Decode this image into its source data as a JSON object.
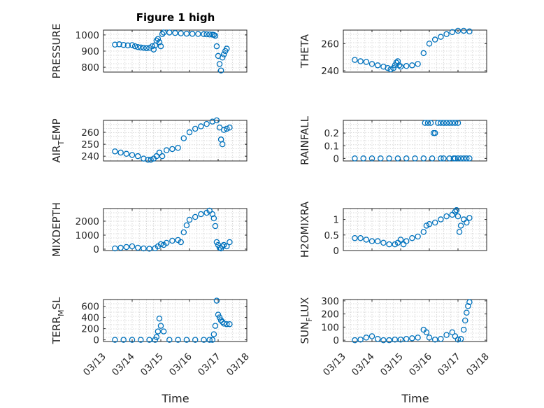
{
  "figure_title": "Figure 1 high",
  "x_axis_label": "Time",
  "x_tick_labels": [
    "03/13",
    "03/14",
    "03/15",
    "03/16",
    "03/17",
    "03/18"
  ],
  "marker_color": "#0072BD",
  "chart_data": [
    {
      "type": "scatter",
      "name": "pressure",
      "ylabel": "PRESSURE",
      "xlim": [
        0,
        5
      ],
      "ylim": [
        770,
        1030
      ],
      "yticks": [
        800,
        900,
        1000
      ],
      "grid": true,
      "x": [
        0.4,
        0.55,
        0.7,
        0.85,
        1.0,
        1.1,
        1.2,
        1.3,
        1.4,
        1.5,
        1.6,
        1.7,
        1.75,
        1.8,
        1.85,
        1.9,
        1.95,
        2.0,
        2.05,
        2.1,
        2.3,
        2.5,
        2.7,
        2.9,
        3.1,
        3.3,
        3.5,
        3.6,
        3.7,
        3.8,
        3.85,
        3.9,
        3.95,
        4.0,
        4.05,
        4.1,
        4.15,
        4.2,
        4.25,
        4.3
      ],
      "y": [
        940,
        942,
        938,
        935,
        937,
        930,
        925,
        922,
        920,
        918,
        920,
        930,
        910,
        935,
        965,
        975,
        955,
        930,
        1005,
        1015,
        1015,
        1012,
        1010,
        1008,
        1007,
        1006,
        1005,
        1004,
        1003,
        1002,
        1000,
        995,
        930,
        870,
        820,
        780,
        860,
        880,
        900,
        915
      ]
    },
    {
      "type": "scatter",
      "name": "theta",
      "ylabel": "THETA",
      "xlim": [
        0,
        5
      ],
      "ylim": [
        239,
        270
      ],
      "yticks": [
        240,
        260
      ],
      "grid": true,
      "x": [
        0.4,
        0.6,
        0.8,
        1.0,
        1.2,
        1.4,
        1.55,
        1.65,
        1.75,
        1.8,
        1.85,
        1.9,
        1.95,
        2.0,
        2.2,
        2.4,
        2.6,
        2.8,
        3.0,
        3.2,
        3.4,
        3.6,
        3.8,
        4.0,
        4.2,
        4.4
      ],
      "y": [
        248,
        247,
        246.5,
        245,
        244,
        243,
        242,
        241,
        242,
        244,
        246,
        247,
        244,
        243,
        243.5,
        244,
        245,
        253,
        260,
        263,
        265,
        267,
        268.5,
        269.5,
        269.5,
        269
      ]
    },
    {
      "type": "scatter",
      "name": "air_temp",
      "ylabel": "AIR_TEMP",
      "xlim": [
        0,
        5
      ],
      "ylim": [
        236,
        270
      ],
      "yticks": [
        240,
        250,
        260
      ],
      "grid": true,
      "x": [
        0.4,
        0.6,
        0.8,
        1.0,
        1.2,
        1.4,
        1.55,
        1.65,
        1.75,
        1.85,
        1.95,
        2.05,
        2.2,
        2.4,
        2.6,
        2.8,
        3.0,
        3.2,
        3.4,
        3.6,
        3.8,
        3.95,
        4.05,
        4.1,
        4.15,
        4.2,
        4.3,
        4.4
      ],
      "y": [
        244,
        243,
        242,
        241,
        240,
        238,
        237,
        237,
        238,
        240,
        243,
        240,
        245,
        246,
        247,
        255,
        260,
        263,
        265,
        267,
        269,
        270,
        264,
        254,
        250,
        262,
        263,
        264
      ]
    },
    {
      "type": "scatter",
      "name": "rainfall",
      "ylabel": "RAINFALL",
      "xlim": [
        0,
        5
      ],
      "ylim": [
        -0.02,
        0.3
      ],
      "yticks": [
        0,
        0.1,
        0.2
      ],
      "grid": true,
      "x": [
        0.4,
        0.7,
        1.0,
        1.3,
        1.6,
        1.9,
        2.2,
        2.5,
        2.8,
        3.1,
        3.4,
        3.5,
        3.7,
        3.9,
        4.0,
        4.1,
        4.2,
        4.3,
        4.4,
        2.85,
        2.95,
        3.05,
        3.15,
        3.2,
        3.3,
        3.4,
        3.5,
        3.6,
        3.7,
        3.8,
        3.9,
        4.0,
        3.85
      ],
      "y": [
        0,
        0,
        0,
        0,
        0,
        0,
        0,
        0,
        0,
        0,
        0,
        0,
        0,
        0,
        0,
        0,
        0,
        0,
        0,
        0.28,
        0.28,
        0.28,
        0.2,
        0.2,
        0.28,
        0.28,
        0.28,
        0.28,
        0.28,
        0.28,
        0.28,
        0.28,
        0
      ]
    },
    {
      "type": "scatter",
      "name": "mixdepth",
      "ylabel": "MIXDEPTH",
      "xlim": [
        0,
        5
      ],
      "ylim": [
        -100,
        2900
      ],
      "yticks": [
        0,
        1000,
        2000
      ],
      "grid": true,
      "x": [
        0.4,
        0.6,
        0.8,
        1.0,
        1.2,
        1.4,
        1.6,
        1.8,
        1.9,
        2.0,
        2.1,
        2.2,
        2.4,
        2.6,
        2.7,
        2.8,
        2.9,
        3.0,
        3.2,
        3.4,
        3.6,
        3.7,
        3.8,
        3.85,
        3.9,
        3.95,
        4.0,
        4.05,
        4.1,
        4.15,
        4.2,
        4.3,
        4.4
      ],
      "y": [
        50,
        100,
        150,
        200,
        100,
        50,
        30,
        60,
        200,
        350,
        300,
        450,
        600,
        650,
        500,
        1200,
        1700,
        2100,
        2300,
        2500,
        2600,
        2750,
        2500,
        2200,
        1650,
        500,
        300,
        100,
        50,
        200,
        300,
        200,
        500
      ]
    },
    {
      "type": "scatter",
      "name": "h2omixra",
      "ylabel": "H2OMIXRA",
      "xlim": [
        0,
        5
      ],
      "ylim": [
        0,
        1.35
      ],
      "yticks": [
        0,
        0.5,
        1
      ],
      "grid": true,
      "x": [
        0.4,
        0.6,
        0.8,
        1.0,
        1.2,
        1.4,
        1.6,
        1.8,
        1.9,
        2.0,
        2.1,
        2.2,
        2.4,
        2.6,
        2.8,
        2.9,
        3.0,
        3.2,
        3.4,
        3.6,
        3.8,
        3.9,
        3.95,
        4.0,
        4.05,
        4.1,
        4.2,
        4.3,
        4.4
      ],
      "y": [
        0.4,
        0.4,
        0.35,
        0.3,
        0.3,
        0.25,
        0.2,
        0.2,
        0.25,
        0.35,
        0.2,
        0.3,
        0.4,
        0.45,
        0.6,
        0.8,
        0.85,
        0.9,
        1.0,
        1.1,
        1.15,
        1.25,
        1.3,
        1.1,
        0.6,
        0.8,
        1.0,
        0.9,
        1.05
      ]
    },
    {
      "type": "scatter",
      "name": "terr_msl",
      "ylabel": "TERR_MSL",
      "xlim": [
        0,
        5
      ],
      "ylim": [
        -30,
        720
      ],
      "yticks": [
        0,
        200,
        400,
        600
      ],
      "grid": true,
      "x": [
        0.4,
        0.7,
        1.0,
        1.3,
        1.6,
        1.8,
        1.85,
        1.9,
        1.95,
        2.0,
        2.1,
        2.3,
        2.6,
        2.9,
        3.2,
        3.5,
        3.7,
        3.8,
        3.85,
        3.9,
        3.95,
        4.0,
        4.05,
        4.1,
        4.15,
        4.2,
        4.3,
        4.4
      ],
      "y": [
        0,
        0,
        0,
        0,
        0,
        0,
        50,
        150,
        380,
        250,
        150,
        0,
        0,
        0,
        0,
        0,
        0,
        0,
        100,
        250,
        700,
        450,
        400,
        350,
        320,
        290,
        280,
        280
      ]
    },
    {
      "type": "scatter",
      "name": "sun_flux",
      "ylabel": "SUN_FLUX",
      "xlim": [
        0,
        5
      ],
      "ylim": [
        -10,
        310
      ],
      "yticks": [
        0,
        100,
        200,
        300
      ],
      "grid": true,
      "x": [
        0.4,
        0.6,
        0.8,
        1.0,
        1.2,
        1.4,
        1.6,
        1.8,
        2.0,
        2.2,
        2.4,
        2.6,
        2.8,
        2.9,
        3.0,
        3.2,
        3.4,
        3.6,
        3.8,
        3.9,
        4.0,
        4.1,
        4.2,
        4.25,
        4.3,
        4.35,
        4.4
      ],
      "y": [
        0,
        5,
        20,
        30,
        10,
        0,
        0,
        5,
        5,
        10,
        15,
        20,
        80,
        60,
        20,
        5,
        10,
        40,
        60,
        30,
        5,
        10,
        80,
        150,
        210,
        260,
        290
      ]
    }
  ],
  "ylabel_parts": {
    "air_temp": [
      "AIR",
      "T",
      "EMP"
    ],
    "terr_msl": [
      "TERR",
      "M",
      "SL"
    ],
    "sun_flux": [
      "SUN",
      "F",
      "LUX"
    ]
  }
}
